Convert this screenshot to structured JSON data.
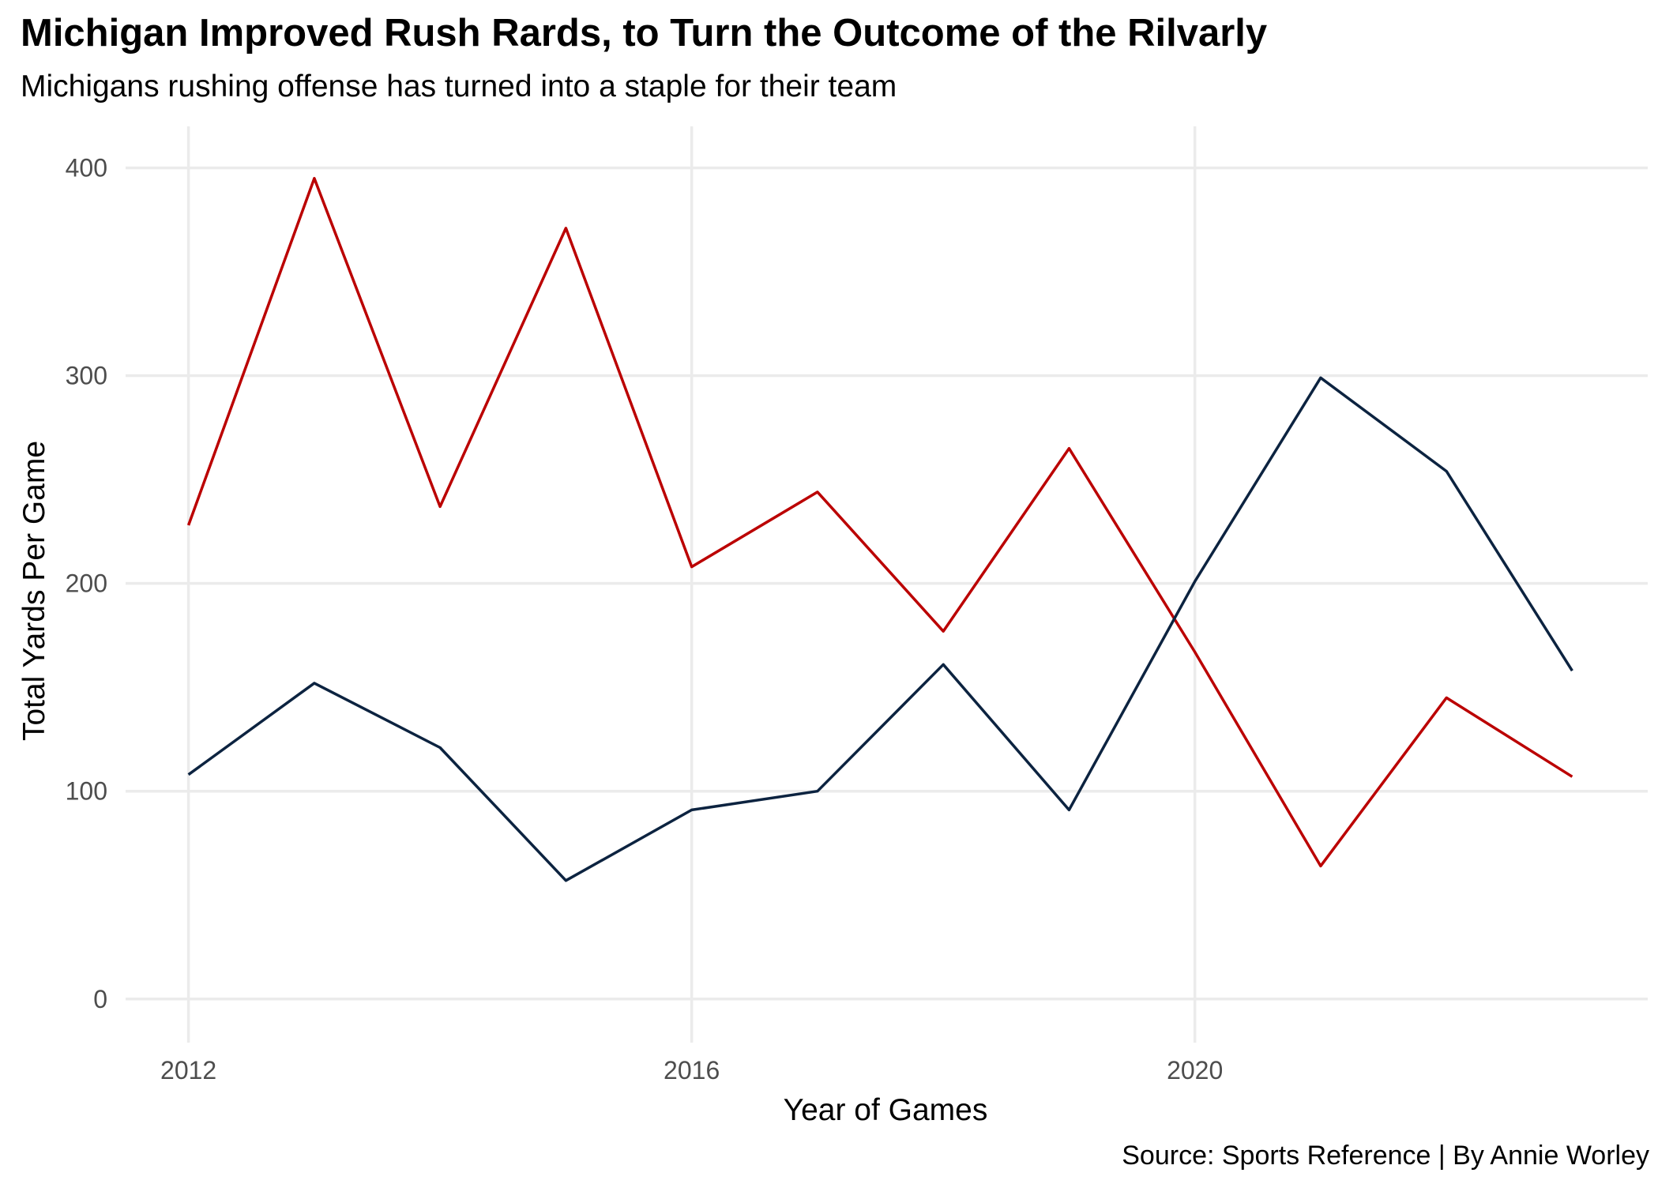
{
  "chart_data": {
    "type": "line",
    "title": "Michigan Improved Rush Rards, to Turn the Outcome of the Rilvarly",
    "subtitle": "Michigans rushing offense has turned into a staple for their team",
    "caption": "Source: Sports Reference | By Annie Worley",
    "xlabel": "Year of Games",
    "ylabel": "Total Yards Per Game",
    "x": [
      2012,
      2013,
      2014,
      2015,
      2016,
      2017,
      2018,
      2019,
      2020,
      2021,
      2022,
      2023
    ],
    "xlim": [
      2011.5,
      2023.6
    ],
    "ylim": [
      -21,
      420
    ],
    "x_ticks": [
      "2012",
      "2016",
      "2020"
    ],
    "y_ticks": [
      "0",
      "100",
      "200",
      "300",
      "400"
    ],
    "grid": true,
    "legend": "none",
    "series": [
      {
        "color": "#bb0000",
        "values": [
          228,
          395,
          237,
          371,
          208,
          244,
          177,
          265,
          167,
          64,
          145,
          107
        ]
      },
      {
        "color": "#0c2340",
        "values": [
          108,
          152,
          121,
          57,
          91,
          100,
          161,
          91,
          201,
          299,
          254,
          158
        ]
      }
    ]
  }
}
